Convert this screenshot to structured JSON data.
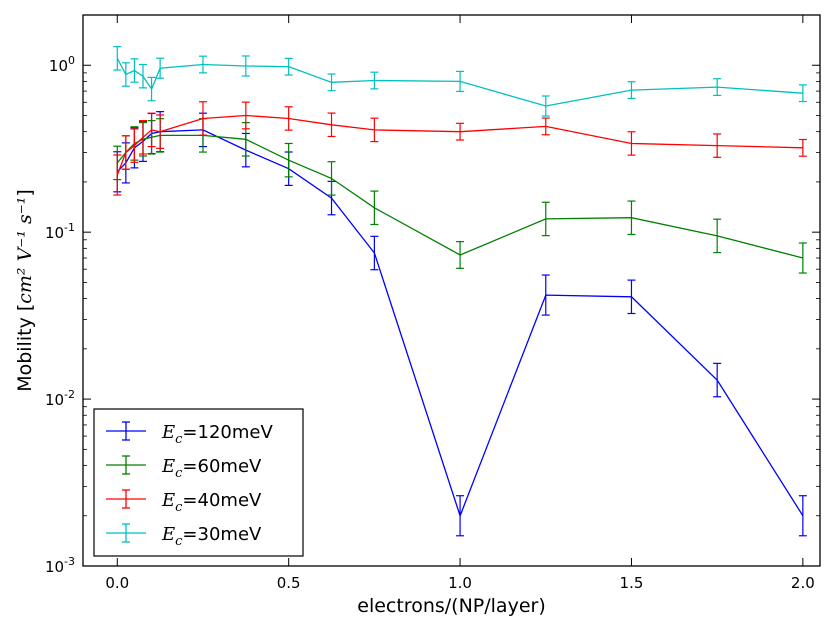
{
  "chart_data": {
    "type": "line",
    "title": "",
    "xlabel": "electrons/(NP/layer)",
    "ylabel_prefix": "Mobility [",
    "ylabel_math": "cm² V⁻¹ s⁻¹",
    "ylabel_suffix": "]",
    "x_ticks": [
      "0.0",
      "0.5",
      "1.0",
      "1.5",
      "2.0"
    ],
    "y_ticks": [
      {
        "base": "10",
        "exp": "-3"
      },
      {
        "base": "10",
        "exp": "-2"
      },
      {
        "base": "10",
        "exp": "-1"
      },
      {
        "base": "10",
        "exp": "0"
      }
    ],
    "xlim": [
      -0.1,
      2.05
    ],
    "ylim": [
      0.001,
      2.0
    ],
    "yscale": "log",
    "legend_position": "lower-left",
    "series": [
      {
        "name": "Ec=120meV",
        "legend_sym": "E",
        "legend_sub": "c",
        "legend_rest": "=120meV",
        "color": "#0000ff",
        "x": [
          0.0,
          0.025,
          0.05,
          0.075,
          0.1,
          0.125,
          0.25,
          0.375,
          0.5,
          0.625,
          0.75,
          1.0,
          1.25,
          1.5,
          1.75,
          2.0
        ],
        "y": [
          0.23,
          0.26,
          0.32,
          0.35,
          0.39,
          0.4,
          0.41,
          0.31,
          0.24,
          0.16,
          0.075,
          0.002,
          0.042,
          0.041,
          0.013,
          0.002
        ],
        "err": [
          0.12,
          0.12,
          0.12,
          0.12,
          0.12,
          0.12,
          0.1,
          0.1,
          0.1,
          0.1,
          0.1,
          0.12,
          0.12,
          0.1,
          0.1,
          0.12
        ]
      },
      {
        "name": "Ec=60meV",
        "legend_sym": "E",
        "legend_sub": "c",
        "legend_rest": "=60meV",
        "color": "#008000",
        "x": [
          0.0,
          0.025,
          0.05,
          0.075,
          0.1,
          0.125,
          0.25,
          0.375,
          0.5,
          0.625,
          0.75,
          1.0,
          1.25,
          1.5,
          1.75,
          2.0
        ],
        "y": [
          0.26,
          0.3,
          0.34,
          0.36,
          0.37,
          0.38,
          0.38,
          0.36,
          0.27,
          0.21,
          0.14,
          0.073,
          0.12,
          0.122,
          0.095,
          0.07
        ],
        "err": [
          0.1,
          0.1,
          0.1,
          0.1,
          0.1,
          0.1,
          0.1,
          0.1,
          0.1,
          0.1,
          0.1,
          0.08,
          0.1,
          0.1,
          0.1,
          0.09
        ]
      },
      {
        "name": "Ec=40meV",
        "legend_sym": "E",
        "legend_sub": "c",
        "legend_rest": "=40meV",
        "color": "#ff0000",
        "x": [
          0.0,
          0.025,
          0.05,
          0.075,
          0.1,
          0.125,
          0.25,
          0.375,
          0.5,
          0.625,
          0.75,
          1.0,
          1.25,
          1.5,
          1.75,
          2.0
        ],
        "y": [
          0.22,
          0.3,
          0.33,
          0.37,
          0.41,
          0.4,
          0.48,
          0.5,
          0.48,
          0.44,
          0.41,
          0.4,
          0.43,
          0.34,
          0.33,
          0.32
        ],
        "err": [
          0.12,
          0.1,
          0.1,
          0.1,
          0.1,
          0.1,
          0.1,
          0.08,
          0.07,
          0.07,
          0.07,
          0.05,
          0.05,
          0.07,
          0.07,
          0.05
        ]
      },
      {
        "name": "Ec=30meV",
        "legend_sym": "E",
        "legend_sub": "c",
        "legend_rest": "=30meV",
        "color": "#00bfbf",
        "x": [
          0.0,
          0.025,
          0.05,
          0.075,
          0.1,
          0.125,
          0.25,
          0.375,
          0.5,
          0.625,
          0.75,
          1.0,
          1.25,
          1.5,
          1.75,
          2.0
        ],
        "y": [
          1.1,
          0.88,
          0.93,
          0.86,
          0.72,
          0.96,
          1.01,
          0.99,
          0.98,
          0.79,
          0.81,
          0.8,
          0.57,
          0.71,
          0.74,
          0.68
        ],
        "err": [
          0.07,
          0.07,
          0.07,
          0.07,
          0.07,
          0.06,
          0.05,
          0.06,
          0.05,
          0.05,
          0.05,
          0.06,
          0.06,
          0.05,
          0.05,
          0.05
        ]
      }
    ]
  }
}
